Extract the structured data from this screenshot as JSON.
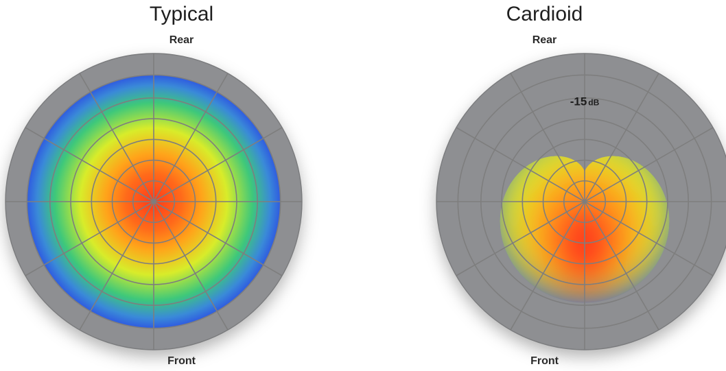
{
  "diagrams": [
    {
      "title": "Typical",
      "rear_label": "Rear",
      "front_label": "Front",
      "pattern": "omnidirectional",
      "annotation": ""
    },
    {
      "title": "Cardioid",
      "rear_label": "Rear",
      "front_label": "Front",
      "pattern": "cardioid",
      "annotation_value": "-15",
      "annotation_unit": "dB"
    }
  ],
  "colors": {
    "ring": "#8e8f92",
    "grid": "#7e7e7e",
    "hot": "#ff3a1a",
    "warm": "#ffa41a",
    "mid": "#d8ec2a",
    "cool": "#3ec87a",
    "cold": "#2f5be0"
  }
}
